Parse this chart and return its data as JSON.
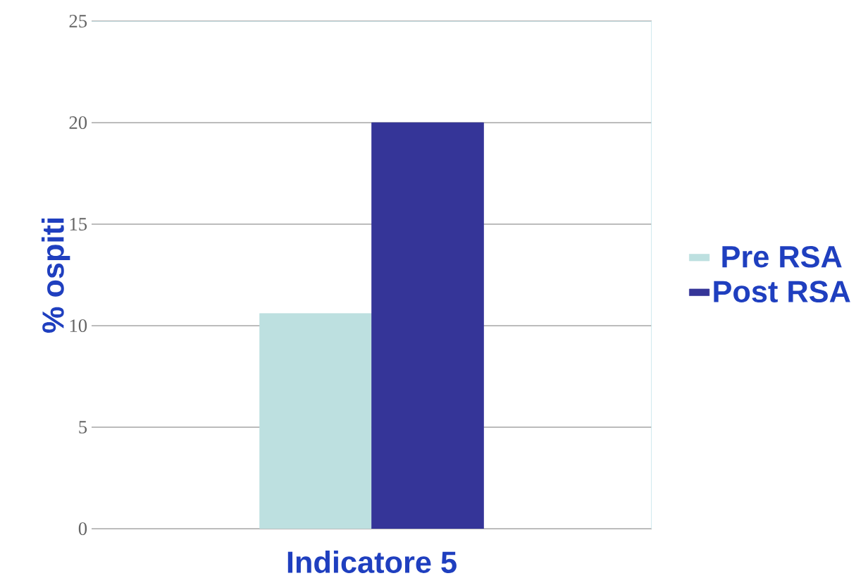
{
  "chart_data": {
    "type": "bar",
    "xlabel": "Indicatore 5",
    "ylabel": "% ospiti",
    "categories": [
      null
    ],
    "series": [
      {
        "name": "Pre RSA",
        "color": "#bde0e0",
        "values": [
          10.6
        ]
      },
      {
        "name": "Post RSA",
        "color": "#353598",
        "values": [
          20
        ]
      }
    ],
    "ylim": [
      0,
      25
    ],
    "yticks": [
      0,
      5,
      10,
      15,
      20,
      25
    ],
    "grid": "y",
    "legend": "right"
  }
}
